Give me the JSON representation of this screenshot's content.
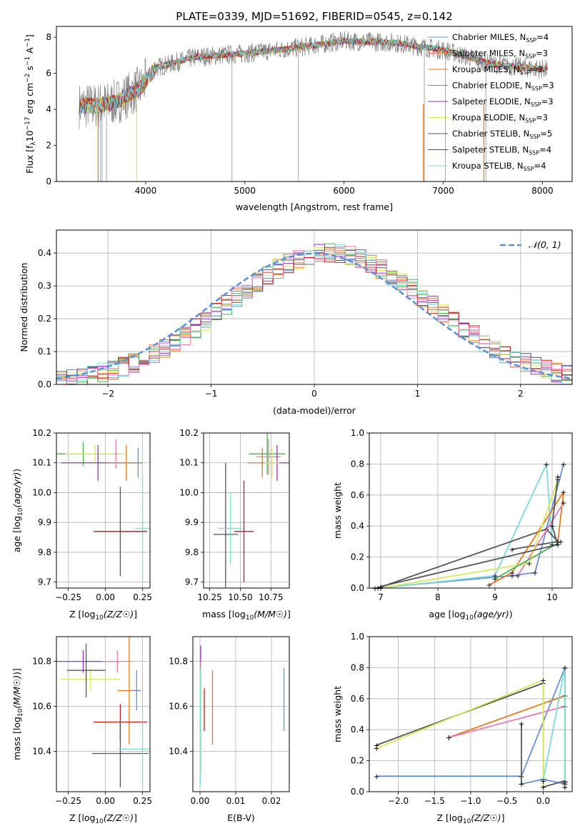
{
  "title": "PLATE=0339, MJD=51692, FIBERID=0545, z=0.142",
  "colors": {
    "Chabrier MILES": "#6a8fd8",
    "Salpeter MILES": "#f07a4c",
    "Kroupa MILES": "#e07b20",
    "Chabrier ELODIE": "#4caf50",
    "Salpeter ELODIE": "#9b30c8",
    "Kroupa ELODIE": "#d8e85a",
    "Chabrier STELIB": "#555555",
    "Salpeter STELIB": "#c41e1e",
    "Kroupa STELIB": "#80dada",
    "data": "#808080",
    "pink": "#e87bb8"
  },
  "chart_data": [
    {
      "id": "spectrum",
      "type": "line",
      "xlabel": "wavelength [Angstrom, rest frame]",
      "ylabel": "Flux [f",
      "xlim": [
        3100,
        8300
      ],
      "ylim": [
        0,
        8.6
      ],
      "xticks": [
        "4000",
        "5000",
        "6000",
        "7000",
        "8000"
      ],
      "yticks": [
        "0",
        "2",
        "4",
        "6",
        "8"
      ],
      "legend": [
        {
          "label": "Chabrier MILES, N",
          "n": "4",
          "color": "#6a8fd8"
        },
        {
          "label": "Salpeter MILES, N",
          "n": "3",
          "color": "#f07a4c"
        },
        {
          "label": "Kroupa MILES, N",
          "n": "3",
          "color": "#e07b20"
        },
        {
          "label": "Chabrier ELODIE, N",
          "n": "3",
          "color": "#4caf50"
        },
        {
          "label": "Salpeter ELODIE, N",
          "n": "3",
          "color": "#9b30c8"
        },
        {
          "label": "Kroupa ELODIE, N",
          "n": "3",
          "color": "#d8e85a"
        },
        {
          "label": "Chabrier STELIB, N",
          "n": "5",
          "color": "#555555"
        },
        {
          "label": "Salpeter STELIB, N",
          "n": "4",
          "color": "#c41e1e"
        },
        {
          "label": "Kroupa STELIB, N",
          "n": "4",
          "color": "#80dada"
        }
      ],
      "series_model_knots": {
        "x": [
          3320,
          3500,
          3700,
          3950,
          4100,
          4500,
          5000,
          5500,
          6000,
          6500,
          7000,
          7500,
          8050
        ],
        "y": [
          4.2,
          4.2,
          4.4,
          5.2,
          6.3,
          6.9,
          7.1,
          7.4,
          7.8,
          7.7,
          7.3,
          6.5,
          6.2
        ]
      }
    },
    {
      "id": "residuals",
      "type": "bar",
      "xlabel": "(data-model)/error",
      "ylabel": "Normed distribution",
      "xlim": [
        -2.5,
        2.5
      ],
      "ylim": [
        0,
        0.47
      ],
      "xticks": [
        "−2",
        "−1",
        "0",
        "1",
        "2"
      ],
      "yticks": [
        "0.0",
        "0.1",
        "0.2",
        "0.3",
        "0.4"
      ],
      "legend": [
        {
          "label": "𝒩(0, 1)",
          "color": "#5a8fd8"
        }
      ]
    },
    {
      "id": "age-vs-Z",
      "type": "scatter",
      "xlabel": "Z [log",
      "ylabel": "age  [log",
      "xlim": [
        -0.33,
        0.3
      ],
      "ylim": [
        9.68,
        10.2
      ],
      "xticks": [
        "−0.25",
        "0.00",
        "0.25"
      ],
      "yticks": [
        "9.7",
        "9.8",
        "9.9",
        "10.0",
        "10.1",
        "10.2"
      ],
      "points": [
        {
          "x": -0.15,
          "y": 10.13,
          "xerr": 0.25,
          "yerr": 0.04,
          "color": "#4caf50"
        },
        {
          "x": -0.07,
          "y": 10.13,
          "xerr": 0.2,
          "yerr": 0.03,
          "color": "#d8e85a"
        },
        {
          "x": -0.05,
          "y": 10.1,
          "xerr": 0.25,
          "yerr": 0.06,
          "color": "#9b30c8"
        },
        {
          "x": 0.1,
          "y": 9.87,
          "xerr": 0.17,
          "yerr": 0.15,
          "color": "#555555"
        },
        {
          "x": 0.14,
          "y": 10.1,
          "xerr": 0.11,
          "yerr": 0.06,
          "color": "#e07b20"
        },
        {
          "x": 0.25,
          "y": 9.88,
          "xerr": 0.05,
          "yerr": 0.18,
          "color": "#80dada"
        },
        {
          "x": 0.22,
          "y": 10.1,
          "xerr": 0.03,
          "yerr": 0.05,
          "color": "#6a8fd8"
        },
        {
          "x": 0.1,
          "y": 9.87,
          "xerr": 0.18,
          "yerr": 0.002,
          "color": "#c41e1e"
        },
        {
          "x": 0.07,
          "y": 10.13,
          "xerr": 0.01,
          "yerr": 0.05,
          "color": "#e87bb8"
        }
      ]
    },
    {
      "id": "age-vs-mass",
      "type": "scatter",
      "xlabel": "mass [log",
      "ylabel": "",
      "xlim": [
        10.2,
        10.9
      ],
      "ylim": [
        9.68,
        10.2
      ],
      "xticks": [
        "10.25",
        "10.50",
        "10.75"
      ],
      "yticks": [
        "9.7",
        "9.8",
        "9.9",
        "10.0",
        "10.1",
        "10.2"
      ],
      "points": [
        {
          "x": 10.38,
          "y": 9.86,
          "xerr": 0.1,
          "yerr": 0.24,
          "color": "#555555"
        },
        {
          "x": 10.42,
          "y": 9.88,
          "xerr": 0.1,
          "yerr": 0.12,
          "color": "#80dada"
        },
        {
          "x": 10.53,
          "y": 9.87,
          "xerr": 0.08,
          "yerr": 0.17,
          "color": "#c41e1e"
        },
        {
          "x": 10.72,
          "y": 10.13,
          "xerr": 0.15,
          "yerr": 0.07,
          "color": "#4caf50"
        },
        {
          "x": 10.73,
          "y": 10.12,
          "xerr": 0.1,
          "yerr": 0.06,
          "color": "#e87bb8"
        },
        {
          "x": 10.8,
          "y": 10.1,
          "xerr": 0.1,
          "yerr": 0.06,
          "color": "#9b30c8"
        },
        {
          "x": 10.68,
          "y": 10.1,
          "xerr": 0.12,
          "yerr": 0.05,
          "color": "#e07b20"
        },
        {
          "x": 10.76,
          "y": 10.1,
          "xerr": 0.06,
          "yerr": 0.05,
          "color": "#d8e85a"
        }
      ]
    },
    {
      "id": "weight-vs-age",
      "type": "line",
      "xlabel": "age  [log",
      "ylabel": "mass weight",
      "xlim": [
        6.8,
        10.35
      ],
      "ylim": [
        0,
        1
      ],
      "xticks": [
        "7",
        "8",
        "9",
        "10"
      ],
      "yticks": [
        "0.0",
        "0.2",
        "0.4",
        "0.6",
        "0.8",
        "1.0"
      ]
    },
    {
      "id": "mass-vs-Z",
      "type": "scatter",
      "xlabel": "Z [log",
      "ylabel": "mass [log",
      "xlim": [
        -0.33,
        0.3
      ],
      "ylim": [
        10.22,
        10.91
      ],
      "xticks": [
        "−0.25",
        "0.00",
        "0.25"
      ],
      "yticks": [
        "10.4",
        "10.6",
        "10.8"
      ],
      "points": [
        {
          "x": -0.15,
          "y": 10.8,
          "xerr": 0.25,
          "yerr": 0.05,
          "color": "#9b30c8"
        },
        {
          "x": -0.1,
          "y": 10.72,
          "xerr": 0.2,
          "yerr": 0.05,
          "color": "#d8e85a"
        },
        {
          "x": -0.13,
          "y": 10.76,
          "xerr": 0.13,
          "yerr": 0.12,
          "color": "#555555"
        },
        {
          "x": 0.08,
          "y": 10.8,
          "xerr": 0.1,
          "yerr": 0.05,
          "color": "#e87bb8"
        },
        {
          "x": 0.16,
          "y": 10.67,
          "xerr": 0.08,
          "yerr": 0.24,
          "color": "#e07b20"
        },
        {
          "x": 0.21,
          "y": 10.67,
          "xerr": 0.03,
          "yerr": 0.09,
          "color": "#6a8fd8"
        },
        {
          "x": 0.1,
          "y": 10.53,
          "xerr": 0.18,
          "yerr": 0.08,
          "color": "#c41e1e"
        },
        {
          "x": 0.1,
          "y": 10.39,
          "xerr": 0.19,
          "yerr": 0.15,
          "color": "#555555"
        },
        {
          "x": 0.25,
          "y": 10.41,
          "xerr": 0.16,
          "yerr": 0.18,
          "color": "#80dada"
        }
      ]
    },
    {
      "id": "mass-vs-ebv",
      "type": "scatter",
      "xlabel": "E(B-V)",
      "ylabel": "",
      "xlim": [
        -0.002,
        0.025
      ],
      "ylim": [
        10.22,
        10.91
      ],
      "xticks": [
        "0.00",
        "0.01",
        "0.02"
      ],
      "yticks": [
        "10.4",
        "10.6",
        "10.8"
      ]
    },
    {
      "id": "weight-vs-Z",
      "type": "line",
      "xlabel": "Z [log",
      "ylabel": "mass weight",
      "xlim": [
        -2.4,
        0.4
      ],
      "ylim": [
        0,
        1
      ],
      "xticks": [
        "−2.0",
        "−1.5",
        "−1.0",
        "−0.5",
        "0.0"
      ],
      "yticks": [
        "0.0",
        "0.2",
        "0.4",
        "0.6",
        "0.8",
        "1.0"
      ]
    }
  ]
}
